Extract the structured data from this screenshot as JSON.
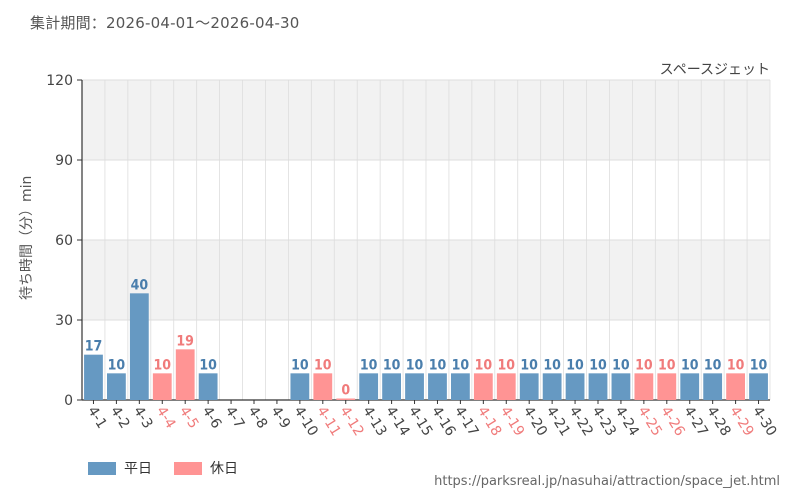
{
  "header": {
    "period": "集計期間：2026-04-01～2026-04-30"
  },
  "colors": {
    "weekday": "#6699c2",
    "holiday": "#ff9494",
    "weekday_text": "#4a7eac",
    "holiday_text": "#f07b7b",
    "band": "#f2f2f2",
    "grid": "#dddddd"
  },
  "chart_data": {
    "type": "bar",
    "title": "スペースジェット",
    "ylabel": "待ち時間（分）min",
    "xlabel": "",
    "ylim": [
      0,
      120
    ],
    "yticks": [
      0,
      30,
      60,
      90,
      120
    ],
    "categories": [
      "4-1",
      "4-2",
      "4-3",
      "4-4",
      "4-5",
      "4-6",
      "4-7",
      "4-8",
      "4-9",
      "4-10",
      "4-11",
      "4-12",
      "4-13",
      "4-14",
      "4-15",
      "4-16",
      "4-17",
      "4-18",
      "4-19",
      "4-20",
      "4-21",
      "4-22",
      "4-23",
      "4-24",
      "4-25",
      "4-26",
      "4-27",
      "4-28",
      "4-29",
      "4-30"
    ],
    "values": [
      17,
      10,
      40,
      10,
      19,
      10,
      null,
      null,
      null,
      10,
      10,
      0,
      10,
      10,
      10,
      10,
      10,
      10,
      10,
      10,
      10,
      10,
      10,
      10,
      10,
      10,
      10,
      10,
      10,
      10
    ],
    "day_type": [
      "weekday",
      "weekday",
      "weekday",
      "holiday",
      "holiday",
      "weekday",
      "weekday",
      "weekday",
      "weekday",
      "weekday",
      "holiday",
      "holiday",
      "weekday",
      "weekday",
      "weekday",
      "weekday",
      "weekday",
      "holiday",
      "holiday",
      "weekday",
      "weekday",
      "weekday",
      "weekday",
      "weekday",
      "holiday",
      "holiday",
      "weekday",
      "weekday",
      "holiday",
      "weekday"
    ],
    "legend": [
      {
        "name": "平日",
        "key": "weekday"
      },
      {
        "name": "休日",
        "key": "holiday"
      }
    ],
    "legend_position": "bottom-left",
    "grid": true
  },
  "footer": {
    "source": "https://parksreal.jp/nasuhai/attraction/space_jet.html"
  }
}
